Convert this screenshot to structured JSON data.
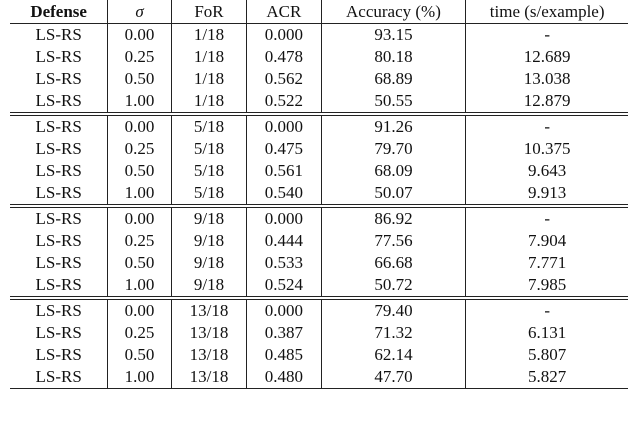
{
  "table": {
    "headers": [
      "Defense",
      "σ",
      "FoR",
      "ACR",
      "Accuracy (%)",
      "time (s/example)"
    ],
    "groups": [
      [
        [
          "LS-RS",
          "0.00",
          "1/18",
          "0.000",
          "93.15",
          "-"
        ],
        [
          "LS-RS",
          "0.25",
          "1/18",
          "0.478",
          "80.18",
          "12.689"
        ],
        [
          "LS-RS",
          "0.50",
          "1/18",
          "0.562",
          "68.89",
          "13.038"
        ],
        [
          "LS-RS",
          "1.00",
          "1/18",
          "0.522",
          "50.55",
          "12.879"
        ]
      ],
      [
        [
          "LS-RS",
          "0.00",
          "5/18",
          "0.000",
          "91.26",
          "-"
        ],
        [
          "LS-RS",
          "0.25",
          "5/18",
          "0.475",
          "79.70",
          "10.375"
        ],
        [
          "LS-RS",
          "0.50",
          "5/18",
          "0.561",
          "68.09",
          "9.643"
        ],
        [
          "LS-RS",
          "1.00",
          "5/18",
          "0.540",
          "50.07",
          "9.913"
        ]
      ],
      [
        [
          "LS-RS",
          "0.00",
          "9/18",
          "0.000",
          "86.92",
          "-"
        ],
        [
          "LS-RS",
          "0.25",
          "9/18",
          "0.444",
          "77.56",
          "7.904"
        ],
        [
          "LS-RS",
          "0.50",
          "9/18",
          "0.533",
          "66.68",
          "7.771"
        ],
        [
          "LS-RS",
          "1.00",
          "9/18",
          "0.524",
          "50.72",
          "7.985"
        ]
      ],
      [
        [
          "LS-RS",
          "0.00",
          "13/18",
          "0.000",
          "79.40",
          "-"
        ],
        [
          "LS-RS",
          "0.25",
          "13/18",
          "0.387",
          "71.32",
          "6.131"
        ],
        [
          "LS-RS",
          "0.50",
          "13/18",
          "0.485",
          "62.14",
          "5.807"
        ],
        [
          "LS-RS",
          "1.00",
          "13/18",
          "0.480",
          "47.70",
          "5.827"
        ]
      ]
    ]
  }
}
